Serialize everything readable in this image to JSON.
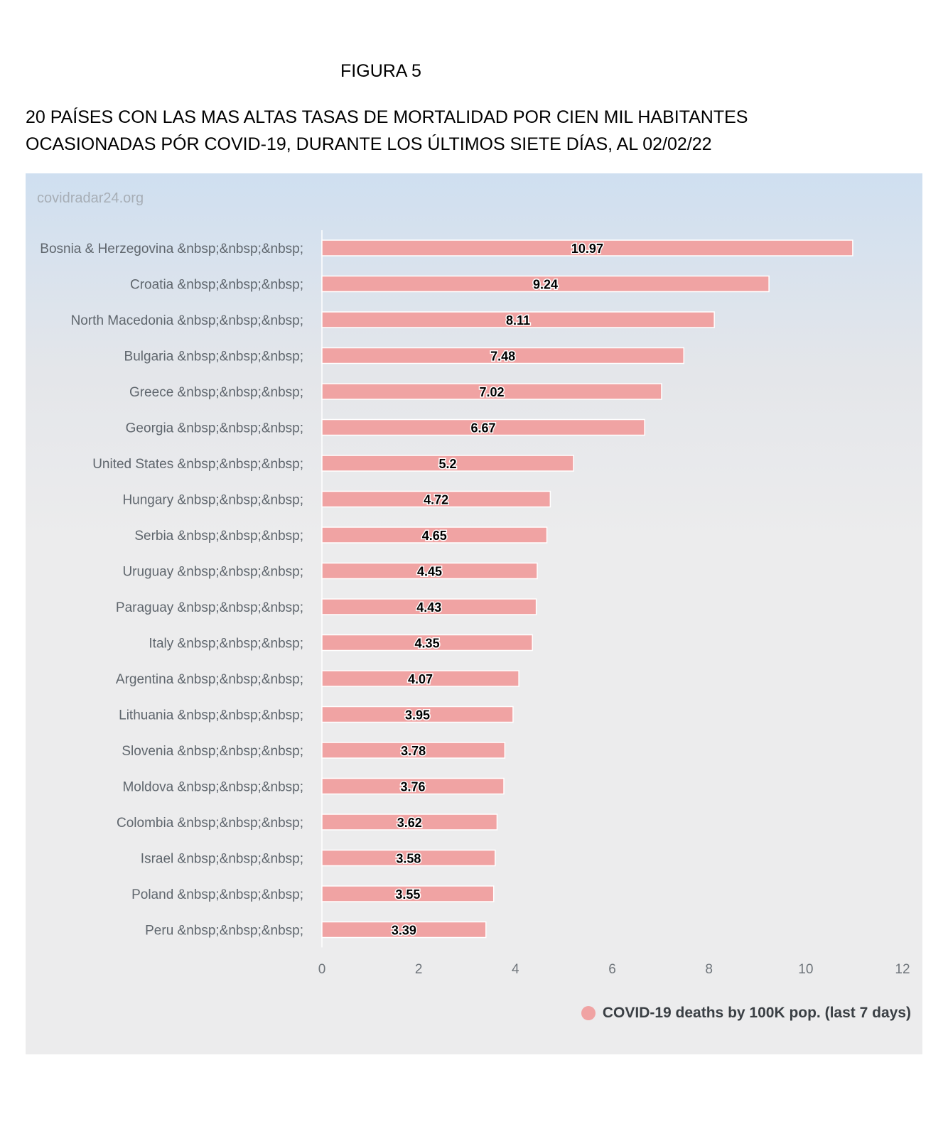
{
  "figure_label": "FIGURA 5",
  "title_line1": "20 PAÍSES CON LAS MAS ALTAS TASAS DE MORTALIDAD POR CIEN MIL HABITANTES",
  "title_line2": "OCASIONADAS PÓR COVID-19, DURANTE LOS ÚLTIMOS SIETE DÍAS, AL 02/02/22",
  "watermark": "covidradar24.org",
  "chart_data": {
    "type": "bar",
    "orientation": "horizontal",
    "categories": [
      "Bosnia & Herzegovina &nbsp;&nbsp;&nbsp;",
      "Croatia &nbsp;&nbsp;&nbsp;",
      "North Macedonia &nbsp;&nbsp;&nbsp;",
      "Bulgaria &nbsp;&nbsp;&nbsp;",
      "Greece &nbsp;&nbsp;&nbsp;",
      "Georgia &nbsp;&nbsp;&nbsp;",
      "United States &nbsp;&nbsp;&nbsp;",
      "Hungary &nbsp;&nbsp;&nbsp;",
      "Serbia &nbsp;&nbsp;&nbsp;",
      "Uruguay &nbsp;&nbsp;&nbsp;",
      "Paraguay &nbsp;&nbsp;&nbsp;",
      "Italy &nbsp;&nbsp;&nbsp;",
      "Argentina &nbsp;&nbsp;&nbsp;",
      "Lithuania &nbsp;&nbsp;&nbsp;",
      "Slovenia &nbsp;&nbsp;&nbsp;",
      "Moldova &nbsp;&nbsp;&nbsp;",
      "Colombia &nbsp;&nbsp;&nbsp;",
      "Israel &nbsp;&nbsp;&nbsp;",
      "Poland &nbsp;&nbsp;&nbsp;",
      "Peru &nbsp;&nbsp;&nbsp;"
    ],
    "series": [
      {
        "name": "COVID-19 deaths by 100K pop. (last 7 days)",
        "values": [
          10.97,
          9.24,
          8.11,
          7.48,
          7.02,
          6.67,
          5.2,
          4.72,
          4.65,
          4.45,
          4.43,
          4.35,
          4.07,
          3.95,
          3.78,
          3.76,
          3.62,
          3.58,
          3.55,
          3.39
        ],
        "color": "#f0a3a3"
      }
    ],
    "data_labels": [
      "10.97",
      "9.24",
      "8.11",
      "7.48",
      "7.02",
      "6.67",
      "5.2",
      "4.72",
      "4.65",
      "4.45",
      "4.43",
      "4.35",
      "4.07",
      "3.95",
      "3.78",
      "3.76",
      "3.62",
      "3.58",
      "3.55",
      "3.39"
    ],
    "xlim": [
      0,
      12
    ],
    "xticks": [
      0,
      2,
      4,
      6,
      8,
      10,
      12
    ],
    "grid": false,
    "legend_position": "bottom-right"
  }
}
